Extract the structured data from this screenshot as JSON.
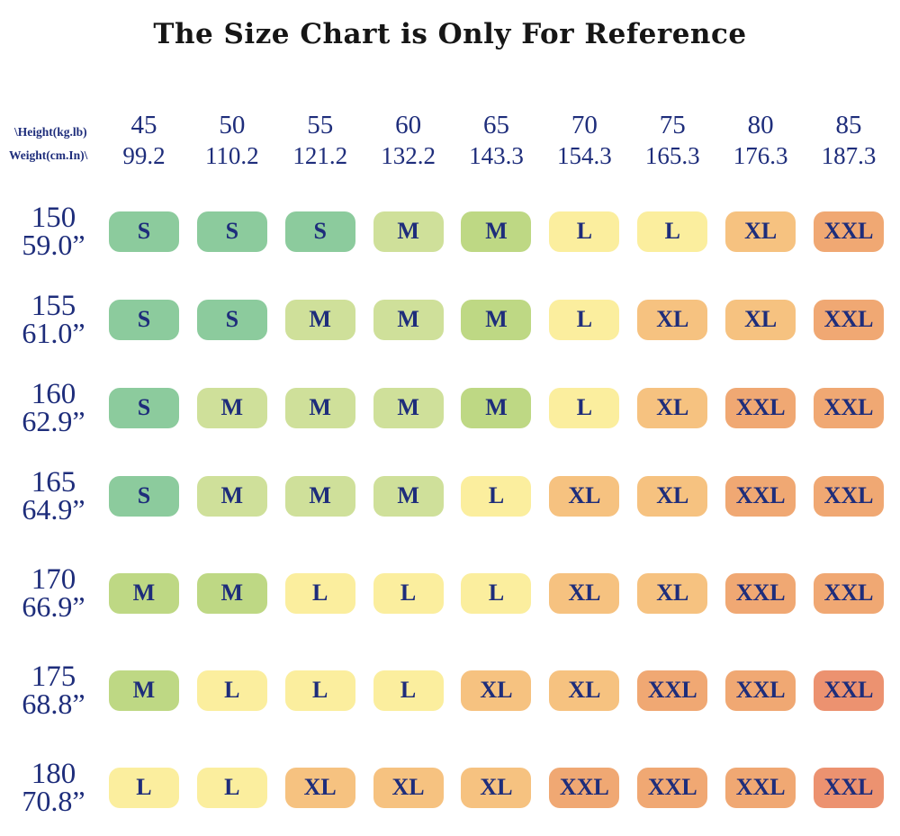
{
  "title": "The Size Chart is Only For Reference",
  "palette": {
    "S": "#8ccb9d",
    "M1": "#cfe09a",
    "M2": "#bed884",
    "L": "#fbee9e",
    "XL": "#f6c280",
    "XXL": "#f0a873",
    "XXL2": "#ec9270",
    "text_navy": "#1e2d7b",
    "title_black": "#161616"
  },
  "header": {
    "corner_line1": "\\Height(kg.lb)",
    "corner_line2": "Weight(cm.In)\\",
    "columns": [
      {
        "kg": "45",
        "lb": "99.2"
      },
      {
        "kg": "50",
        "lb": "110.2"
      },
      {
        "kg": "55",
        "lb": "121.2"
      },
      {
        "kg": "60",
        "lb": "132.2"
      },
      {
        "kg": "65",
        "lb": "143.3"
      },
      {
        "kg": "70",
        "lb": "154.3"
      },
      {
        "kg": "75",
        "lb": "165.3"
      },
      {
        "kg": "80",
        "lb": "176.3"
      },
      {
        "kg": "85",
        "lb": "187.3"
      }
    ]
  },
  "rows": [
    {
      "cm": "150",
      "inch": "59.0”",
      "cells": [
        {
          "size": "S",
          "color": "S"
        },
        {
          "size": "S",
          "color": "S"
        },
        {
          "size": "S",
          "color": "S"
        },
        {
          "size": "M",
          "color": "M1"
        },
        {
          "size": "M",
          "color": "M2"
        },
        {
          "size": "L",
          "color": "L"
        },
        {
          "size": "L",
          "color": "L"
        },
        {
          "size": "XL",
          "color": "XL"
        },
        {
          "size": "XXL",
          "color": "XXL"
        }
      ]
    },
    {
      "cm": "155",
      "inch": "61.0”",
      "cells": [
        {
          "size": "S",
          "color": "S"
        },
        {
          "size": "S",
          "color": "S"
        },
        {
          "size": "M",
          "color": "M1"
        },
        {
          "size": "M",
          "color": "M1"
        },
        {
          "size": "M",
          "color": "M2"
        },
        {
          "size": "L",
          "color": "L"
        },
        {
          "size": "XL",
          "color": "XL"
        },
        {
          "size": "XL",
          "color": "XL"
        },
        {
          "size": "XXL",
          "color": "XXL"
        }
      ]
    },
    {
      "cm": "160",
      "inch": "62.9”",
      "cells": [
        {
          "size": "S",
          "color": "S"
        },
        {
          "size": "M",
          "color": "M1"
        },
        {
          "size": "M",
          "color": "M1"
        },
        {
          "size": "M",
          "color": "M1"
        },
        {
          "size": "M",
          "color": "M2"
        },
        {
          "size": "L",
          "color": "L"
        },
        {
          "size": "XL",
          "color": "XL"
        },
        {
          "size": "XXL",
          "color": "XXL"
        },
        {
          "size": "XXL",
          "color": "XXL"
        }
      ]
    },
    {
      "cm": "165",
      "inch": "64.9”",
      "cells": [
        {
          "size": "S",
          "color": "S"
        },
        {
          "size": "M",
          "color": "M1"
        },
        {
          "size": "M",
          "color": "M1"
        },
        {
          "size": "M",
          "color": "M1"
        },
        {
          "size": "L",
          "color": "L"
        },
        {
          "size": "XL",
          "color": "XL"
        },
        {
          "size": "XL",
          "color": "XL"
        },
        {
          "size": "XXL",
          "color": "XXL"
        },
        {
          "size": "XXL",
          "color": "XXL"
        }
      ]
    },
    {
      "cm": "170",
      "inch": "66.9”",
      "cells": [
        {
          "size": "M",
          "color": "M2"
        },
        {
          "size": "M",
          "color": "M2"
        },
        {
          "size": "L",
          "color": "L"
        },
        {
          "size": "L",
          "color": "L"
        },
        {
          "size": "L",
          "color": "L"
        },
        {
          "size": "XL",
          "color": "XL"
        },
        {
          "size": "XL",
          "color": "XL"
        },
        {
          "size": "XXL",
          "color": "XXL"
        },
        {
          "size": "XXL",
          "color": "XXL"
        }
      ]
    },
    {
      "cm": "175",
      "inch": "68.8”",
      "cells": [
        {
          "size": "M",
          "color": "M2"
        },
        {
          "size": "L",
          "color": "L"
        },
        {
          "size": "L",
          "color": "L"
        },
        {
          "size": "L",
          "color": "L"
        },
        {
          "size": "XL",
          "color": "XL"
        },
        {
          "size": "XL",
          "color": "XL"
        },
        {
          "size": "XXL",
          "color": "XXL"
        },
        {
          "size": "XXL",
          "color": "XXL"
        },
        {
          "size": "XXL",
          "color": "XXL2"
        }
      ]
    },
    {
      "cm": "180",
      "inch": "70.8”",
      "cells": [
        {
          "size": "L",
          "color": "L"
        },
        {
          "size": "L",
          "color": "L"
        },
        {
          "size": "XL",
          "color": "XL"
        },
        {
          "size": "XL",
          "color": "XL"
        },
        {
          "size": "XL",
          "color": "XL"
        },
        {
          "size": "XXL",
          "color": "XXL"
        },
        {
          "size": "XXL",
          "color": "XXL"
        },
        {
          "size": "XXL",
          "color": "XXL"
        },
        {
          "size": "XXL",
          "color": "XXL2"
        }
      ]
    }
  ]
}
